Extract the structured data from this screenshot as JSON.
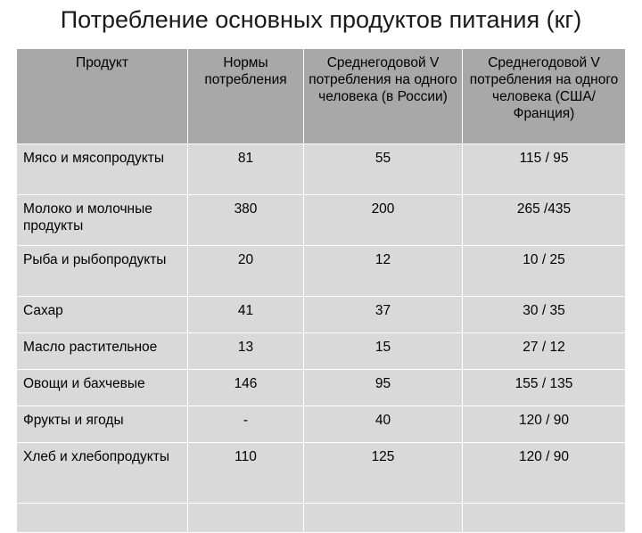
{
  "title": "Потребление основных продуктов питания (кг)",
  "table": {
    "headers": [
      "Продукт",
      "Нормы потребления",
      "Среднегодовой V потребления на одного человека (в России)",
      "Среднегодовой V потребления на одного человека (США/Франция)"
    ],
    "rows": [
      {
        "name": "Мясо и мясопродукты",
        "norm": "81",
        "russia": "55",
        "usa_france": "115 / 95"
      },
      {
        "name": "Молоко и молочные продукты",
        "norm": "380",
        "russia": "200",
        "usa_france": "265  /435"
      },
      {
        "name": "Рыба и рыбопродукты",
        "norm": "20",
        "russia": "12",
        "usa_france": "10 / 25"
      },
      {
        "name": "Сахар",
        "norm": "41",
        "russia": "37",
        "usa_france": "30 / 35"
      },
      {
        "name": "Масло растительное",
        "norm": "13",
        "russia": "15",
        "usa_france": "27 / 12"
      },
      {
        "name": "Овощи и бахчевые",
        "norm": "146",
        "russia": "95",
        "usa_france": "155 / 135"
      },
      {
        "name": "Фрукты и ягоды",
        "norm": "-",
        "russia": "40",
        "usa_france": "120 / 90"
      },
      {
        "name": "Хлеб и хлебопродукты",
        "norm": "110",
        "russia": "125",
        "usa_france": "120 / 90"
      }
    ]
  }
}
